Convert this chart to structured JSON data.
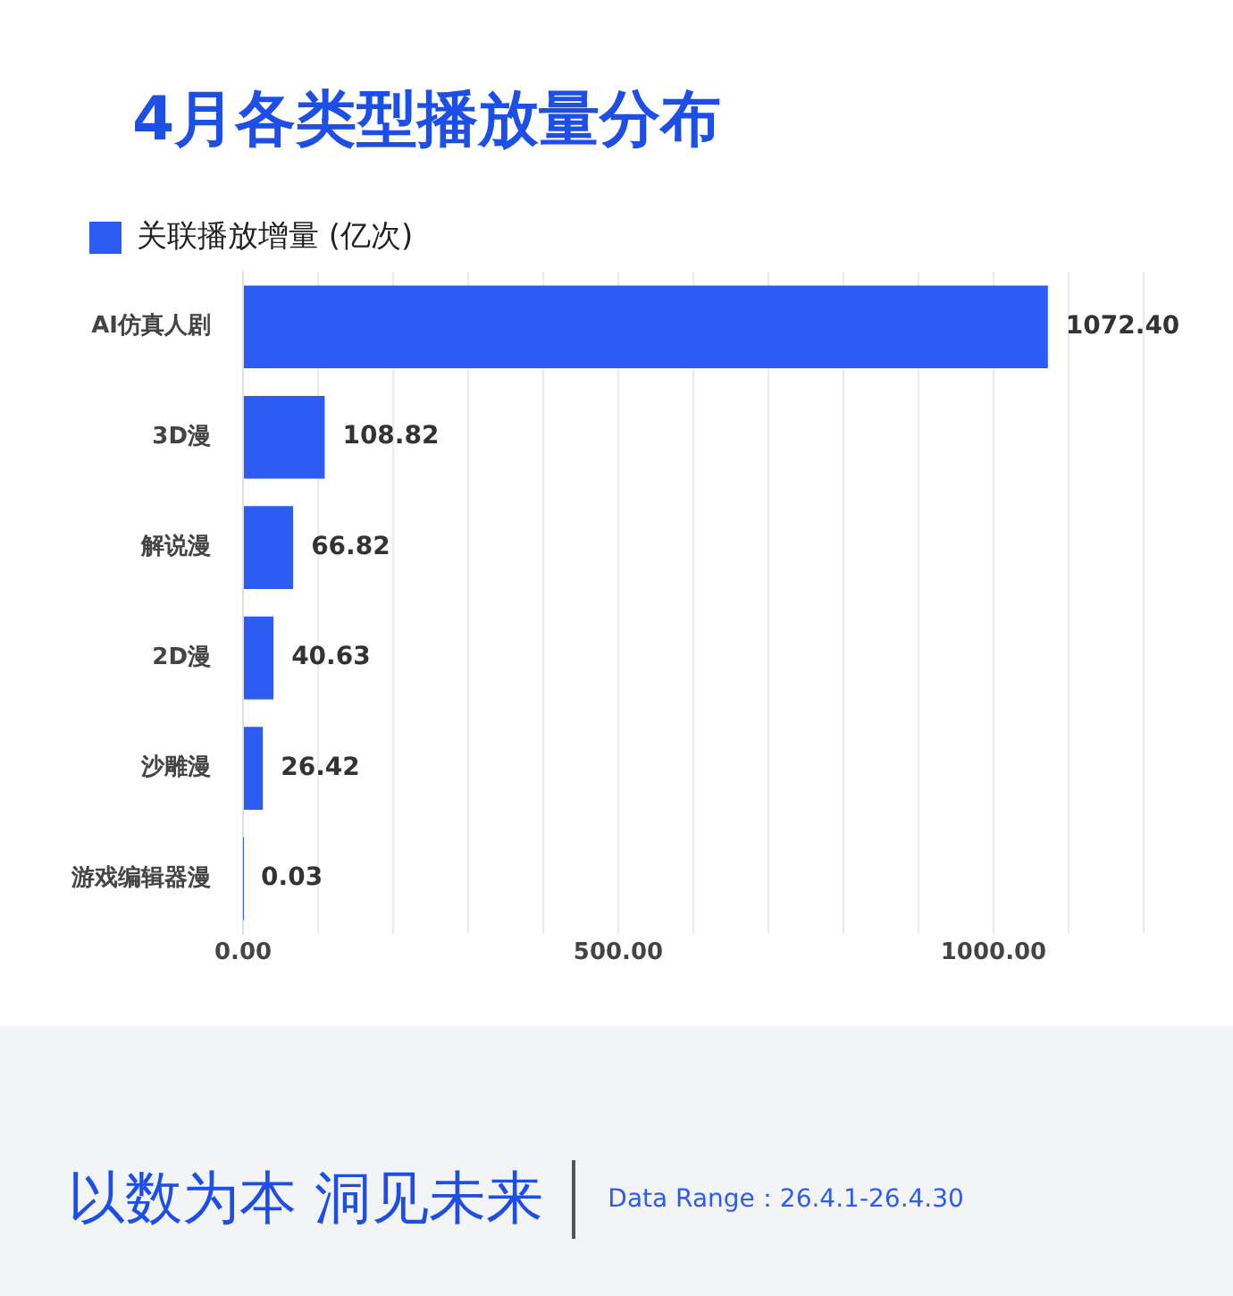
{
  "chart_data": {
    "type": "bar",
    "orientation": "horizontal",
    "title": "4月各类型播放量分布",
    "categories": [
      "AI仿真人剧",
      "3D漫",
      "解说漫",
      "2D漫",
      "沙雕漫",
      "游戏编辑器漫"
    ],
    "series": [
      {
        "name": "关联播放增量 (亿次)",
        "color": "#2d5cf4",
        "values": [
          1072.4,
          108.82,
          66.82,
          40.63,
          26.42,
          0.03
        ]
      }
    ],
    "value_labels": [
      "1072.40",
      "108.82",
      "66.82",
      "40.63",
      "26.42",
      "0.03"
    ],
    "xlim": [
      0,
      1200
    ],
    "xticks": [
      {
        "value": 0,
        "label": "0.00"
      },
      {
        "value": 100,
        "label": null
      },
      {
        "value": 200,
        "label": null
      },
      {
        "value": 300,
        "label": null
      },
      {
        "value": 400,
        "label": null
      },
      {
        "value": 500,
        "label": "500.00"
      },
      {
        "value": 600,
        "label": null
      },
      {
        "value": 700,
        "label": null
      },
      {
        "value": 800,
        "label": null
      },
      {
        "value": 900,
        "label": null
      },
      {
        "value": 1000,
        "label": "1000.00"
      },
      {
        "value": 1100,
        "label": null
      },
      {
        "value": 1200,
        "label": null
      }
    ],
    "grid": "x",
    "legend": "top left",
    "annotations": [
      "以数为本 洞见未来",
      "Data Range：26.4.1-26.4.30"
    ]
  }
}
